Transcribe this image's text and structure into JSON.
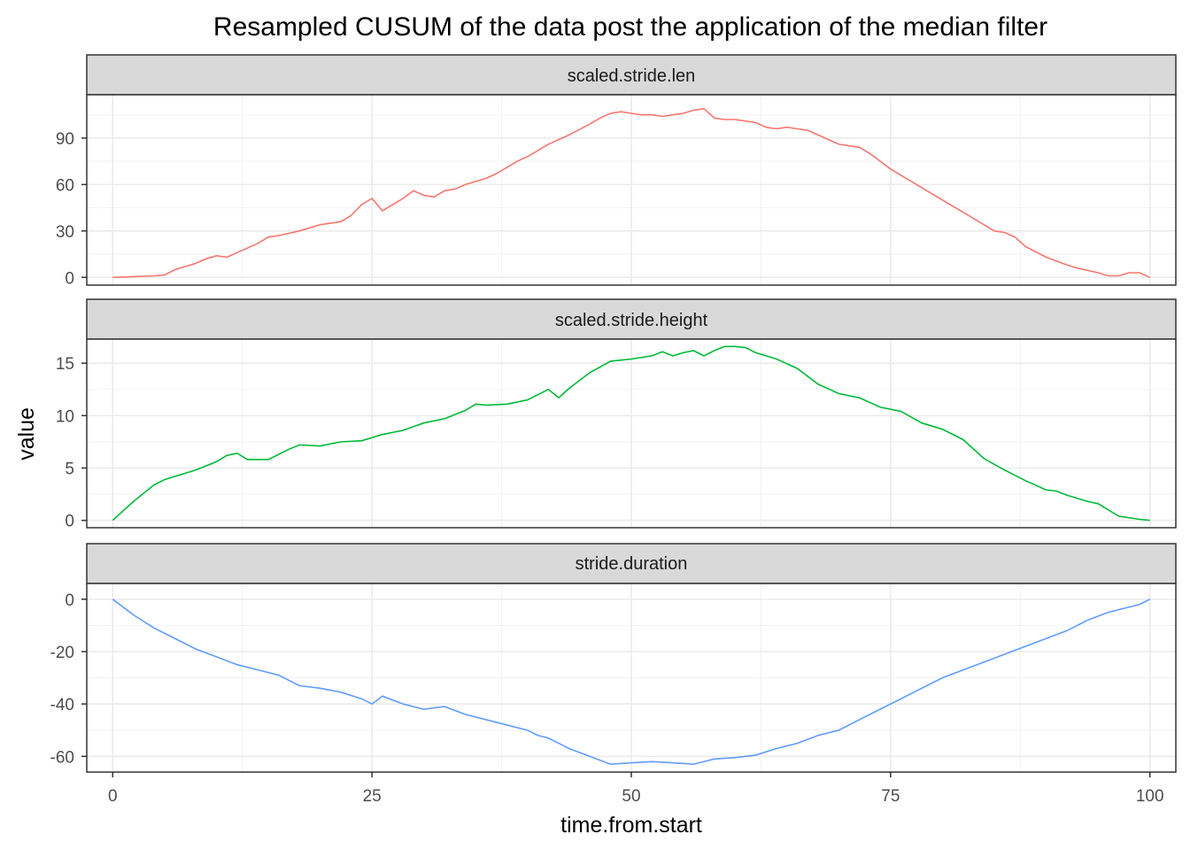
{
  "chart_data": {
    "type": "line",
    "title": "Resampled CUSUM of the data post the application of the median filter",
    "xlabel": "time.from.start",
    "ylabel": "value",
    "xlim": [
      -2.5,
      102.5
    ],
    "x_ticks": [
      0,
      25,
      50,
      75,
      100
    ],
    "x_tick_labels": [
      "0",
      "25",
      "50",
      "75",
      "100"
    ],
    "grid": true,
    "panels": [
      {
        "strip": "scaled.stride.len",
        "color": "#F8766D",
        "ylim": [
          -5,
          118
        ],
        "y_ticks": [
          0,
          30,
          60,
          90
        ],
        "y_tick_labels": [
          "0",
          "30",
          "60",
          "90"
        ],
        "series": {
          "name": "scaled.stride.len",
          "x": [
            0,
            2,
            4,
            5,
            6,
            8,
            9,
            10,
            11,
            12,
            14,
            15,
            16,
            18,
            20,
            21,
            22,
            23,
            24,
            25,
            26,
            27,
            28,
            29,
            30,
            31,
            32,
            33,
            34,
            35,
            36,
            37,
            38,
            39,
            40,
            42,
            44,
            46,
            47,
            48,
            49,
            50,
            51,
            52,
            53,
            54,
            55,
            56,
            57,
            58,
            59,
            60,
            61,
            62,
            63,
            64,
            65,
            66,
            67,
            68,
            70,
            72,
            73,
            75,
            76,
            78,
            80,
            82,
            84,
            85,
            86,
            87,
            88,
            90,
            92,
            93,
            95,
            96,
            97,
            98,
            99,
            100
          ],
          "values": [
            0,
            0.5,
            1,
            1.5,
            5,
            9,
            12,
            14,
            13,
            16,
            22,
            26,
            27,
            30,
            34,
            35,
            36,
            40,
            47,
            51,
            43,
            47,
            51,
            56,
            53,
            52,
            56,
            57,
            60,
            62,
            64,
            67,
            71,
            75,
            78,
            86,
            92,
            99,
            103,
            106,
            107,
            106,
            105,
            105,
            104,
            105,
            106,
            108,
            109,
            103,
            102,
            102,
            101,
            100,
            97,
            96,
            97,
            96,
            95,
            92,
            86,
            84,
            80,
            70,
            66,
            58,
            50,
            42,
            34,
            30,
            29,
            26,
            20,
            13,
            8,
            6,
            3,
            1,
            1,
            3,
            3,
            0
          ]
        }
      },
      {
        "strip": "scaled.stride.height",
        "color": "#00BA38",
        "ylim": [
          -0.7,
          17.3
        ],
        "y_ticks": [
          0,
          5,
          10,
          15
        ],
        "y_tick_labels": [
          "0",
          "5",
          "10",
          "15"
        ],
        "series": {
          "name": "scaled.stride.height",
          "x": [
            0,
            2,
            4,
            5,
            8,
            10,
            11,
            12,
            13,
            15,
            17,
            18,
            20,
            22,
            24,
            26,
            28,
            30,
            32,
            34,
            35,
            36,
            38,
            40,
            41,
            42,
            43,
            44,
            46,
            48,
            50,
            52,
            53,
            54,
            55,
            56,
            57,
            58,
            59,
            60,
            61,
            62,
            63,
            64,
            66,
            68,
            70,
            72,
            74,
            76,
            78,
            80,
            82,
            84,
            86,
            88,
            90,
            91,
            92,
            94,
            95,
            97,
            99,
            100
          ],
          "values": [
            0,
            1.8,
            3.4,
            3.9,
            4.8,
            5.6,
            6.2,
            6.4,
            5.8,
            5.8,
            6.8,
            7.2,
            7.1,
            7.5,
            7.6,
            8.2,
            8.6,
            9.3,
            9.7,
            10.5,
            11.1,
            11.0,
            11.1,
            11.5,
            12.0,
            12.5,
            11.7,
            12.6,
            14.1,
            15.2,
            15.4,
            15.7,
            16.1,
            15.7,
            16.0,
            16.2,
            15.7,
            16.2,
            16.6,
            16.6,
            16.5,
            16.0,
            15.7,
            15.4,
            14.5,
            13.0,
            12.1,
            11.7,
            10.8,
            10.4,
            9.3,
            8.7,
            7.7,
            5.9,
            4.8,
            3.8,
            2.9,
            2.8,
            2.4,
            1.8,
            1.6,
            0.4,
            0.1,
            0
          ]
        }
      },
      {
        "strip": "stride.duration",
        "color": "#619CFF",
        "ylim": [
          -66,
          6
        ],
        "y_ticks": [
          0,
          -20,
          -40,
          -60
        ],
        "y_tick_labels": [
          "0",
          "-20",
          "-40",
          "-60"
        ],
        "series": {
          "name": "stride.duration",
          "x": [
            0,
            2,
            4,
            6,
            8,
            10,
            12,
            14,
            16,
            18,
            20,
            22,
            24,
            25,
            26,
            28,
            30,
            32,
            34,
            36,
            38,
            40,
            41,
            42,
            44,
            46,
            48,
            50,
            52,
            54,
            56,
            58,
            60,
            62,
            64,
            66,
            68,
            70,
            72,
            74,
            76,
            78,
            80,
            82,
            84,
            86,
            88,
            90,
            92,
            94,
            96,
            98,
            99,
            100
          ],
          "values": [
            0,
            -6,
            -11,
            -15,
            -19,
            -22,
            -25,
            -27,
            -29,
            -33,
            -34,
            -35.5,
            -38,
            -40,
            -37,
            -40,
            -42,
            -41,
            -44,
            -46,
            -48,
            -50,
            -52,
            -53,
            -57,
            -60,
            -63,
            -62.5,
            -62,
            -62.5,
            -63,
            -61,
            -60.5,
            -59.5,
            -57,
            -55,
            -52,
            -50,
            -46,
            -42,
            -38,
            -34,
            -30,
            -27,
            -24,
            -21,
            -18,
            -15,
            -12,
            -8,
            -5,
            -3,
            -2,
            0
          ]
        }
      }
    ]
  }
}
